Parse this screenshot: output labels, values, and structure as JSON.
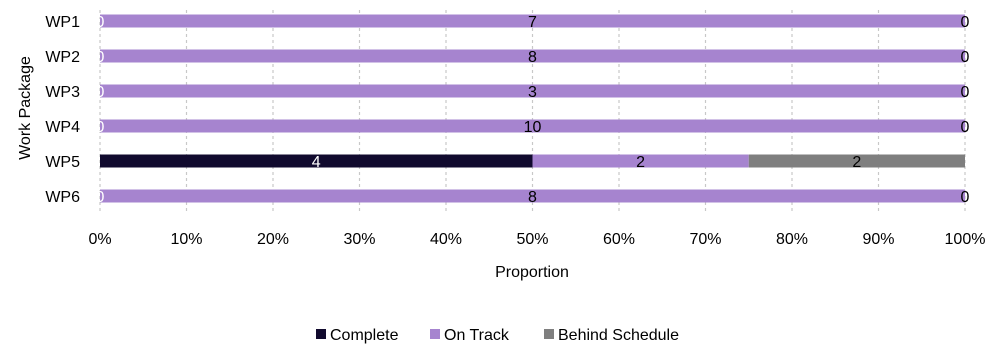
{
  "chart_data": {
    "type": "bar",
    "orientation": "horizontal",
    "stacked": "percent",
    "categories": [
      "WP1",
      "WP2",
      "WP3",
      "WP4",
      "WP5",
      "WP6"
    ],
    "series": [
      {
        "name": "Complete",
        "color": "#110a2e",
        "label_color": "#ffffff",
        "values": [
          0,
          0,
          0,
          0,
          4,
          0
        ]
      },
      {
        "name": "On Track",
        "color": "#a684cf",
        "label_color": "#000000",
        "values": [
          7,
          8,
          3,
          10,
          2,
          8
        ]
      },
      {
        "name": "Behind Schedule",
        "color": "#7f7f7f",
        "label_color": "#000000",
        "values": [
          0,
          0,
          0,
          0,
          2,
          0
        ]
      }
    ],
    "xlabel": "Proportion",
    "ylabel": "Work Package",
    "xlim": [
      0,
      100
    ],
    "xticks": [
      "0%",
      "10%",
      "20%",
      "30%",
      "40%",
      "50%",
      "60%",
      "70%",
      "80%",
      "90%",
      "100%"
    ],
    "grid": "vertical-dashed",
    "legend_position": "bottom"
  }
}
